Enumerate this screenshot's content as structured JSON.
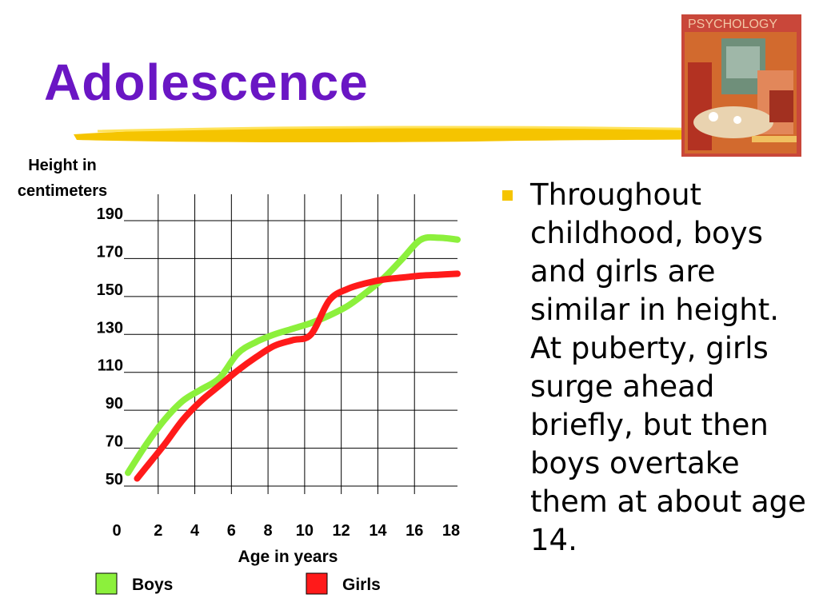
{
  "slide": {
    "title": "Adolescence",
    "bullet": "Throughout childhood, boys and girls are similar in height. At puberty, girls surge ahead briefly, but then boys overtake them at about age 14.",
    "book_cover_text": "PSYCHOLOGY"
  },
  "colors": {
    "title": "#6a16c4",
    "accent": "#f5c400",
    "boys": "#8cf03c",
    "girls": "#ff1a1a"
  },
  "chart_data": {
    "type": "line",
    "ylabel": "Height in centimeters",
    "xlabel": "Age in years",
    "x_ticks": [
      "0",
      "2",
      "4",
      "6",
      "8",
      "10",
      "12",
      "14",
      "16",
      "18"
    ],
    "y_ticks": [
      "190",
      "170",
      "150",
      "130",
      "110",
      "90",
      "70",
      "50"
    ],
    "ylim": [
      50,
      190
    ],
    "xlim": [
      0,
      18
    ],
    "grid": true,
    "legend_position": "bottom",
    "series": [
      {
        "name": "Boys",
        "color": "#8cf03c",
        "points": [
          [
            0,
            57
          ],
          [
            1,
            72
          ],
          [
            2,
            85
          ],
          [
            3,
            95
          ],
          [
            4,
            101
          ],
          [
            5,
            107
          ],
          [
            6,
            120
          ],
          [
            7,
            126
          ],
          [
            8,
            130
          ],
          [
            9,
            133
          ],
          [
            10,
            136
          ],
          [
            11,
            140
          ],
          [
            12,
            145
          ],
          [
            13,
            152
          ],
          [
            14,
            160
          ],
          [
            15,
            170
          ],
          [
            16,
            180
          ],
          [
            17,
            181
          ],
          [
            18,
            180
          ]
        ]
      },
      {
        "name": "Girls",
        "color": "#ff1a1a",
        "points": [
          [
            0.5,
            54
          ],
          [
            1,
            60
          ],
          [
            2,
            72
          ],
          [
            3,
            85
          ],
          [
            4,
            95
          ],
          [
            5,
            103
          ],
          [
            6,
            111
          ],
          [
            7,
            118
          ],
          [
            8,
            124
          ],
          [
            9,
            127
          ],
          [
            10,
            130
          ],
          [
            11,
            148
          ],
          [
            12,
            154
          ],
          [
            13,
            157
          ],
          [
            14,
            159
          ],
          [
            15,
            160
          ],
          [
            16,
            161
          ],
          [
            17,
            161.5
          ],
          [
            18,
            162
          ]
        ]
      }
    ]
  }
}
